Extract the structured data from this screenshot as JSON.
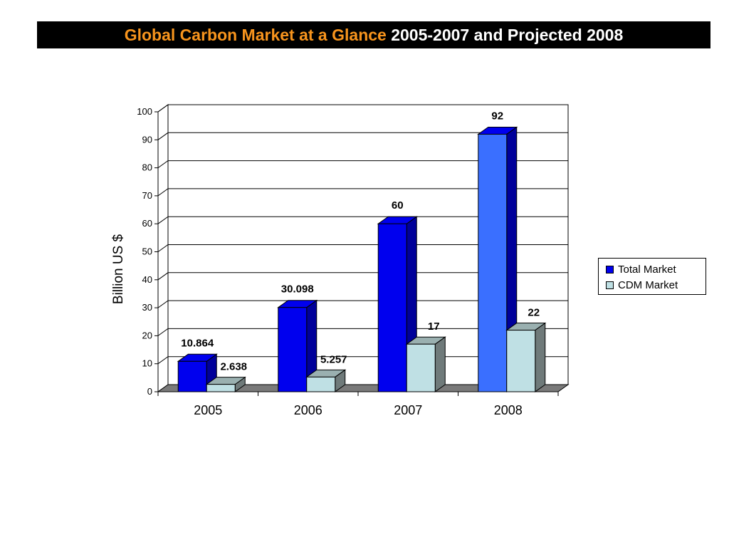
{
  "title": {
    "highlight": "Global Carbon Market at a Glance",
    "rest": "2005-2007 and Projected 2008"
  },
  "chart_data": {
    "type": "bar",
    "categories": [
      "2005",
      "2006",
      "2007",
      "2008"
    ],
    "series": [
      {
        "name": "Total Market",
        "values": [
          10.864,
          30.098,
          60,
          92
        ],
        "labels": [
          "10.864",
          "30.098",
          "60",
          "92"
        ]
      },
      {
        "name": "CDM Market",
        "values": [
          2.638,
          5.257,
          17,
          22
        ],
        "labels": [
          "2.638",
          "5.257",
          "17",
          "22"
        ]
      }
    ],
    "ylabel": "Billion US $",
    "ylim": [
      0,
      100
    ],
    "yticks": [
      0,
      10,
      20,
      30,
      40,
      50,
      60,
      70,
      80,
      90,
      100
    ],
    "grid": true,
    "legend": "right",
    "projected_category": "2008"
  },
  "colors": {
    "total": "#0000ee",
    "total_side": "#00009a",
    "total_projected": "#3a6fff",
    "cdm": "#bfe0e4",
    "cdm_side": "#6f7a7a",
    "cdm_top": "#9ab0b0",
    "floor": "#7a7a7a",
    "title_highlight": "#f7941d"
  }
}
